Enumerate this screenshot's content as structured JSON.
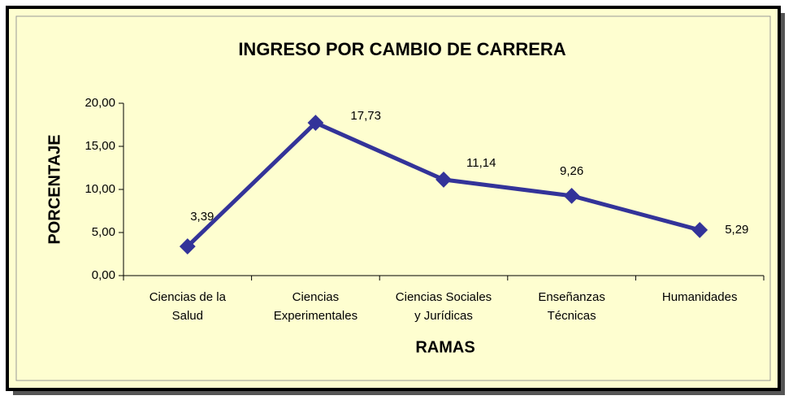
{
  "chart_data": {
    "type": "line",
    "title": "INGRESO POR CAMBIO DE CARRERA",
    "xlabel": "RAMAS",
    "ylabel": "PORCENTAJE",
    "categories": [
      "Ciencias de la\nSalud",
      "Ciencias\nExperimentales",
      "Ciencias Sociales\ny Jurídicas",
      "Enseñanzas\nTécnicas",
      "Humanidades"
    ],
    "series": [
      {
        "name": "PORCENTAJE",
        "color": "#333399",
        "values": [
          3.39,
          17.73,
          11.14,
          9.26,
          5.29
        ],
        "value_labels": [
          "3,39",
          "17,73",
          "11,14",
          "9,26",
          "5,29"
        ]
      }
    ],
    "ylim": [
      0,
      20
    ],
    "yticks": [
      {
        "value": 0,
        "label": "0,00"
      },
      {
        "value": 5,
        "label": "5,00"
      },
      {
        "value": 10,
        "label": "10,00"
      },
      {
        "value": 15,
        "label": "15,00"
      },
      {
        "value": 20,
        "label": "20,00"
      }
    ],
    "grid": false
  }
}
